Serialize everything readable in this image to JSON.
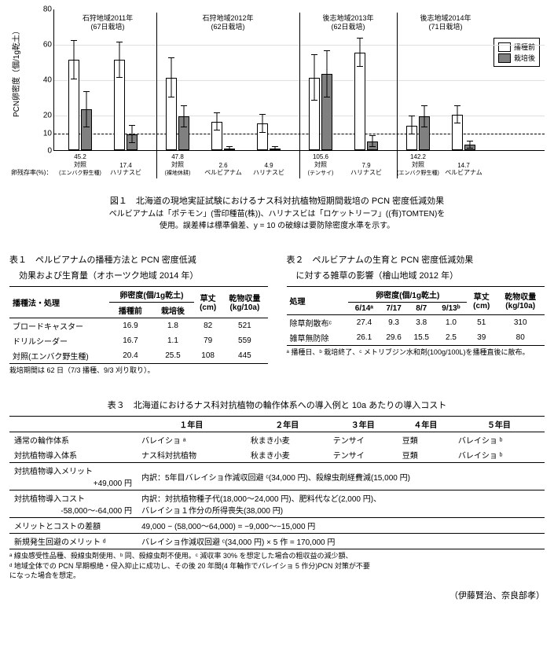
{
  "chart": {
    "type": "bar",
    "y_label": "PCN卵密度（個/1g乾土）",
    "y_ticks": [
      0,
      10,
      20,
      40,
      60,
      80
    ],
    "y_max": 80,
    "threshold_y": 10,
    "legend": {
      "pre": "播種前",
      "post": "栽培後"
    },
    "bar_colors": {
      "pre": "#ffffff",
      "post": "#808080"
    },
    "grid_color": "#e0e0e0",
    "panels": [
      {
        "title_l1": "石狩地域2011年",
        "title_l2": "(67日栽培)",
        "groups": [
          {
            "name_l1": "対照",
            "name_l2": "(エンバク野生種)",
            "surv": "45.2",
            "pre": 51,
            "post": 23,
            "pre_err": 11,
            "post_err": 10
          },
          {
            "name_l1": "ハリナスビ",
            "name_l2": "",
            "surv": "17.4",
            "pre": 51,
            "post": 9,
            "pre_err": 10,
            "post_err": 5
          }
        ]
      },
      {
        "title_l1": "石狩地域2012年",
        "title_l2": "(62日栽培)",
        "groups": [
          {
            "name_l1": "対照",
            "name_l2": "(裸地休耕)",
            "surv": "47.8",
            "pre": 41,
            "post": 19,
            "pre_err": 11,
            "post_err": 6
          },
          {
            "name_l1": "ペルビアナム",
            "name_l2": "",
            "surv": "2.6",
            "pre": 16,
            "post": 1,
            "pre_err": 5,
            "post_err": 1
          },
          {
            "name_l1": "ハリナスビ",
            "name_l2": "",
            "surv": "4.9",
            "pre": 15,
            "post": 1,
            "pre_err": 5,
            "post_err": 1
          }
        ]
      },
      {
        "title_l1": "後志地域2013年",
        "title_l2": "(62日栽培)",
        "groups": [
          {
            "name_l1": "対照",
            "name_l2": "(テンサイ)",
            "surv": "105.6",
            "pre": 41,
            "post": 43,
            "pre_err": 13,
            "post_err": 13
          },
          {
            "name_l1": "ハリナスビ",
            "name_l2": "",
            "surv": "7.9",
            "pre": 55,
            "post": 5,
            "pre_err": 8,
            "post_err": 3
          }
        ]
      },
      {
        "title_l1": "後志地域2014年",
        "title_l2": "(71日栽培)",
        "groups": [
          {
            "name_l1": "対照",
            "name_l2": "(エンバク野生種)",
            "surv": "142.2",
            "pre": 14,
            "post": 19,
            "pre_err": 5,
            "post_err": 6
          },
          {
            "name_l1": "ペルビアナム",
            "name_l2": "",
            "surv": "14.7",
            "pre": 20,
            "post": 3,
            "pre_err": 5,
            "post_err": 2
          }
        ]
      }
    ],
    "x_note": "卵残存率(%)："
  },
  "fig1": {
    "title": "図１　北海道の現地実証試験におけるナス科対抗植物短期間栽培の PCN 密度低減効果",
    "sub1": "ペルビアナムは「ポテモン」(雪印種苗(株))、ハリナスビは「ロケットリーフ」((有)TOMTEN)を",
    "sub2": "使用。誤差棒は標準偏差、y = 10 の破線は要防除密度水準を示す。"
  },
  "table1": {
    "title_l1": "表１　ペルビアナムの播種方法と PCN 密度低減",
    "title_l2": "効果および生育量（オホーツク地域 2014 年）",
    "head": {
      "c1": "播種法・処理",
      "c2_top": "卵密度(個/1g乾土)",
      "c2a": "播種前",
      "c2b": "栽培後",
      "c3": "草丈\n(cm)",
      "c4": "乾物収量\n(kg/10a)"
    },
    "rows": [
      [
        "ブロードキャスター",
        "16.9",
        "1.8",
        "82",
        "521"
      ],
      [
        "ドリルシーダー",
        "16.7",
        "1.1",
        "79",
        "559"
      ],
      [
        "対照(エンバク野生種)",
        "20.4",
        "25.5",
        "108",
        "445"
      ]
    ],
    "note": "栽培期間は 62 日（7/3 播種、9/3 刈り取り）。"
  },
  "table2": {
    "title_l1": "表２　ペルビアナムの生育と PCN 密度低減効果",
    "title_l2": "に対する雑草の影響（檜山地域 2012 年）",
    "head": {
      "c1": "処理",
      "c2_top": "卵密度(個/1g乾土)",
      "d1": "6/14ᵃ",
      "d2": "7/17",
      "d3": "8/7",
      "d4": "9/13ᵇ",
      "c3": "草丈\n(cm)",
      "c4": "乾物収量\n(kg/10a)"
    },
    "rows": [
      [
        "除草剤散布ᶜ",
        "27.4",
        "9.3",
        "3.8",
        "1.0",
        "51",
        "310"
      ],
      [
        "雑草無防除",
        "26.1",
        "29.6",
        "15.5",
        "2.5",
        "39",
        "80"
      ]
    ],
    "note": "ᵃ 播種日、ᵇ 栽培終了、ᶜ メトリブジン水和剤(100g/100L)を播種直後に散布。"
  },
  "table3": {
    "title": "表３　北海道におけるナス科対抗植物の輪作体系への導入例と 10a あたりの導入コスト",
    "year_heads": [
      "１年目",
      "２年目",
      "３年目",
      "４年目",
      "５年目"
    ],
    "rows_top": [
      [
        "通常の輪作体系",
        "バレイショ ᵃ",
        "秋まき小麦",
        "テンサイ",
        "豆類",
        "バレイショ ᵇ"
      ],
      [
        "対抗植物導入体系",
        "ナス科対抗植物",
        "秋まき小麦",
        "テンサイ",
        "豆類",
        "バレイショ ᵇ"
      ]
    ],
    "sections": [
      {
        "label_l1": "対抗植物導入メリット",
        "label_l2": "+49,000 円",
        "detail": "内訳：5年目バレイショ作減収回避 ᶜ(34,000 円)、殺線虫剤経費減(15,000 円)"
      },
      {
        "label_l1": "対抗植物導入コスト",
        "label_l2": "-58,000～-64,000 円",
        "detail": "内訳：対抗植物種子代(18,000～24,000 円)、肥料代など(2,000 円)、\nバレイショ１作分の所得喪失(38,000 円)"
      },
      {
        "label_l1": "メリットとコストの差額",
        "label_l2": "",
        "detail": "49,000 − (58,000～64,000) = −9,000～−15,000 円"
      },
      {
        "label_l1": "新規発生回避のメリット ᵈ",
        "label_l2": "",
        "detail": "バレイショ作減収回避 ᶜ(34,000 円) × 5 作 = 170,000 円"
      }
    ],
    "note": "ᵃ 線虫感受性品種、殺線虫剤使用、ᵇ 同、殺線虫剤不使用。ᶜ 減収率 30% を想定した場合の粗収益の減少額、\nᵈ 地域全体での PCN 早期根絶・侵入抑止に成功し、その後 20 年間(4 年輪作でバレイショ 5 作分)PCN 対策が不要\nになった場合を想定。"
  },
  "author": "（伊藤賢治、奈良部孝）"
}
